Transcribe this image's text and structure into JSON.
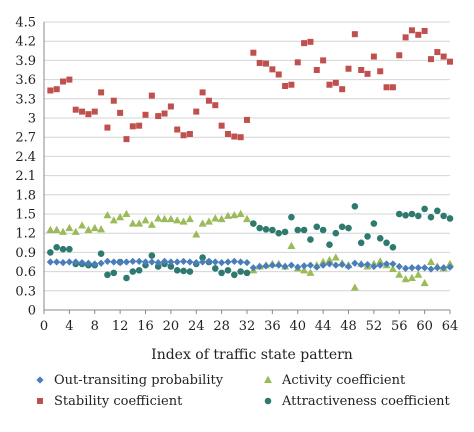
{
  "chart_data": {
    "type": "scatter",
    "xlabel": "Index of traffic state pattern",
    "ylabel": "",
    "xlim": [
      0,
      64
    ],
    "ylim": [
      0,
      4.5
    ],
    "x_ticks": [
      0,
      4,
      8,
      12,
      16,
      20,
      24,
      28,
      32,
      36,
      40,
      44,
      48,
      52,
      56,
      60,
      64
    ],
    "x_tick_labels": [
      "0",
      "4",
      "8",
      "12",
      "16",
      "20",
      "24",
      "28",
      "32",
      "36",
      "40",
      "44",
      "48",
      "52",
      "56",
      "60",
      "64"
    ],
    "y_ticks": [
      0,
      0.3,
      0.6,
      0.9,
      1.2,
      1.5,
      1.8,
      2.1,
      2.4,
      2.7,
      3,
      3.3,
      3.6,
      3.9,
      4.2,
      4.5
    ],
    "y_tick_labels": [
      "0",
      "0.3",
      "0.6",
      "0.9",
      "1.2",
      "1.5",
      "1.8",
      "2.1",
      "2.4",
      "2.7",
      "3",
      "3.3",
      "3.6",
      "3.9",
      "4.2",
      "4.5"
    ],
    "grid": "horizontal",
    "legend_position": "bottom",
    "series": [
      {
        "name": "Out-transiting probability",
        "marker": "diamond",
        "color": "#4a7ebb",
        "x": [
          1,
          2,
          3,
          4,
          5,
          6,
          7,
          8,
          9,
          10,
          11,
          12,
          13,
          14,
          15,
          16,
          17,
          18,
          19,
          20,
          21,
          22,
          23,
          24,
          25,
          26,
          27,
          28,
          29,
          30,
          31,
          32,
          33,
          34,
          35,
          36,
          37,
          38,
          39,
          40,
          41,
          42,
          43,
          44,
          45,
          46,
          47,
          48,
          49,
          50,
          51,
          52,
          53,
          54,
          55,
          56,
          57,
          58,
          59,
          60,
          61,
          62,
          63,
          64
        ],
        "y": [
          0.75,
          0.75,
          0.74,
          0.75,
          0.75,
          0.74,
          0.73,
          0.72,
          0.73,
          0.76,
          0.75,
          0.74,
          0.75,
          0.76,
          0.76,
          0.75,
          0.75,
          0.74,
          0.76,
          0.75,
          0.75,
          0.76,
          0.75,
          0.74,
          0.75,
          0.76,
          0.75,
          0.74,
          0.75,
          0.76,
          0.75,
          0.74,
          0.66,
          0.68,
          0.69,
          0.7,
          0.7,
          0.68,
          0.7,
          0.67,
          0.69,
          0.7,
          0.67,
          0.7,
          0.72,
          0.7,
          0.71,
          0.68,
          0.73,
          0.71,
          0.71,
          0.68,
          0.7,
          0.72,
          0.72,
          0.68,
          0.65,
          0.66,
          0.66,
          0.66,
          0.64,
          0.66,
          0.66,
          0.67
        ]
      },
      {
        "name": "Stability coefficient",
        "marker": "square",
        "color": "#c0504d",
        "x": [
          1,
          2,
          3,
          4,
          5,
          6,
          7,
          8,
          9,
          10,
          11,
          12,
          13,
          14,
          15,
          16,
          17,
          18,
          19,
          20,
          21,
          22,
          23,
          24,
          25,
          26,
          27,
          28,
          29,
          30,
          31,
          32,
          33,
          34,
          35,
          36,
          37,
          38,
          39,
          40,
          41,
          42,
          43,
          44,
          45,
          46,
          47,
          48,
          49,
          50,
          51,
          52,
          53,
          54,
          55,
          56,
          57,
          58,
          59,
          60,
          61,
          62,
          63,
          64
        ],
        "y": [
          3.43,
          3.45,
          3.57,
          3.6,
          3.13,
          3.1,
          3.06,
          3.1,
          3.4,
          2.85,
          3.27,
          3.08,
          2.67,
          2.87,
          2.88,
          3.05,
          3.35,
          3.03,
          3.07,
          3.18,
          2.82,
          2.73,
          2.75,
          3.1,
          3.4,
          3.27,
          3.2,
          2.88,
          2.75,
          2.71,
          2.7,
          2.97,
          4.02,
          3.86,
          3.85,
          3.76,
          3.68,
          3.5,
          3.52,
          3.87,
          4.17,
          4.19,
          3.75,
          3.9,
          3.52,
          3.55,
          3.45,
          3.77,
          4.31,
          3.75,
          3.69,
          3.96,
          3.73,
          3.48,
          3.48,
          3.98,
          4.26,
          4.37,
          4.3,
          4.36,
          3.92,
          4.03,
          3.96,
          3.88
        ]
      },
      {
        "name": "Activity coefficient",
        "marker": "triangle",
        "color": "#9bbb59",
        "x": [
          1,
          2,
          3,
          4,
          5,
          6,
          7,
          8,
          9,
          10,
          11,
          12,
          13,
          14,
          15,
          16,
          17,
          18,
          19,
          20,
          21,
          22,
          23,
          24,
          25,
          26,
          27,
          28,
          29,
          30,
          31,
          32,
          33,
          34,
          35,
          36,
          37,
          38,
          39,
          40,
          41,
          42,
          43,
          44,
          45,
          46,
          47,
          48,
          49,
          50,
          51,
          52,
          53,
          54,
          55,
          56,
          57,
          58,
          59,
          60,
          61,
          62,
          63,
          64
        ],
        "y": [
          1.25,
          1.25,
          1.22,
          1.28,
          1.22,
          1.32,
          1.25,
          1.28,
          1.26,
          1.48,
          1.4,
          1.45,
          1.5,
          1.35,
          1.35,
          1.4,
          1.33,
          1.43,
          1.42,
          1.42,
          1.4,
          1.38,
          1.42,
          1.18,
          1.35,
          1.38,
          1.43,
          1.42,
          1.47,
          1.48,
          1.5,
          1.42,
          0.62,
          0.68,
          0.7,
          0.72,
          0.72,
          0.68,
          1.0,
          0.65,
          0.62,
          0.58,
          0.7,
          0.75,
          0.78,
          0.82,
          0.73,
          0.7,
          0.35,
          0.72,
          0.68,
          0.72,
          0.76,
          0.7,
          0.64,
          0.55,
          0.48,
          0.5,
          0.55,
          0.42,
          0.75,
          0.68,
          0.65,
          0.72
        ]
      },
      {
        "name": "Attractiveness coefficient",
        "marker": "circle",
        "color": "#2f7a6e",
        "x": [
          1,
          2,
          3,
          4,
          5,
          6,
          7,
          8,
          9,
          10,
          11,
          12,
          13,
          14,
          15,
          16,
          17,
          18,
          19,
          20,
          21,
          22,
          23,
          24,
          25,
          26,
          27,
          28,
          29,
          30,
          31,
          32,
          33,
          34,
          35,
          36,
          37,
          38,
          39,
          40,
          41,
          42,
          43,
          44,
          45,
          46,
          47,
          48,
          49,
          50,
          51,
          52,
          53,
          54,
          55,
          56,
          57,
          58,
          59,
          60,
          61,
          62,
          63,
          64
        ],
        "y": [
          0.9,
          0.98,
          0.95,
          0.95,
          0.72,
          0.72,
          0.7,
          0.7,
          0.88,
          0.55,
          0.58,
          0.75,
          0.5,
          0.6,
          0.62,
          0.7,
          0.85,
          0.68,
          0.72,
          0.68,
          0.62,
          0.61,
          0.6,
          0.72,
          0.82,
          0.75,
          0.65,
          0.58,
          0.62,
          0.55,
          0.6,
          0.58,
          1.35,
          1.28,
          1.26,
          1.25,
          1.2,
          1.22,
          1.45,
          1.25,
          1.25,
          1.1,
          1.3,
          1.25,
          1.02,
          1.2,
          1.3,
          1.28,
          1.62,
          1.05,
          1.15,
          1.35,
          1.12,
          1.05,
          0.98,
          1.5,
          1.48,
          1.5,
          1.47,
          1.58,
          1.45,
          1.55,
          1.47,
          1.43
        ]
      }
    ]
  }
}
